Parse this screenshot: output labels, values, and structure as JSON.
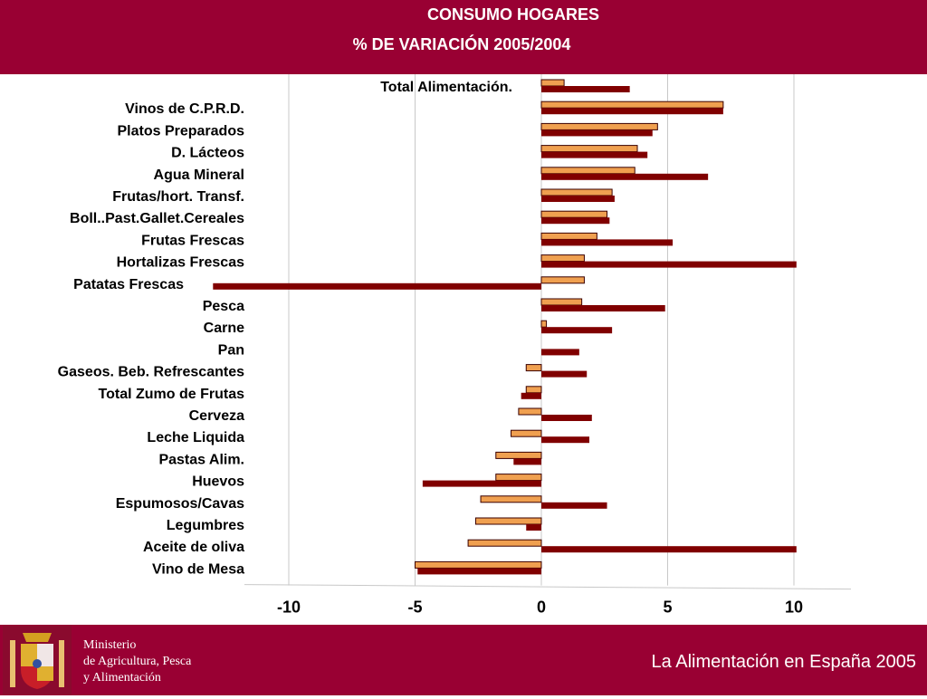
{
  "header": {
    "title": "CONSUMO HOGARES",
    "subtitle": "% DE VARIACIÓN  2005/2004"
  },
  "footer": {
    "ministry_line1": "Ministerio",
    "ministry_line2": "de Agricultura, Pesca",
    "ministry_line3": "y Alimentación",
    "tagline": "La Alimentación en España 2005",
    "emblem_icon": "spanish-coat-of-arms-icon"
  },
  "colors": {
    "brand": "#990033",
    "series_a": "#f0a050",
    "series_b": "#800000"
  },
  "chart_data": {
    "type": "bar",
    "orientation": "horizontal",
    "xlim": [
      -12,
      12
    ],
    "x_ticks": [
      "-10",
      "-5",
      "0",
      "5",
      "10"
    ],
    "grid": true,
    "legend": "none",
    "categories": [
      "Total Alimentación.",
      "Vinos de C.P.R.D.",
      "Platos Preparados",
      "D. Lácteos",
      "Agua Mineral",
      "Frutas/hort. Transf.",
      "Boll..Past.Gallet.Cereales",
      "Frutas Frescas",
      "Hortalizas Frescas",
      "Patatas Frescas",
      "Pesca",
      "Carne",
      "Pan",
      "Gaseos. Beb. Refrescantes",
      "Total Zumo de Frutas",
      "Cerveza",
      "Leche Liquida",
      "Pastas Alim.",
      "Huevos",
      "Espumosos/Cavas",
      "Legumbres",
      "Aceite de oliva",
      "Vino de Mesa"
    ],
    "series": [
      {
        "values": [
          0.9,
          7.2,
          4.6,
          3.8,
          3.7,
          2.8,
          2.6,
          2.2,
          1.7,
          1.7,
          1.6,
          0.2,
          0.0,
          -0.6,
          -0.6,
          -0.9,
          -1.2,
          -1.8,
          -1.8,
          -2.4,
          -2.6,
          -2.9,
          -5.0
        ]
      },
      {
        "values": [
          3.5,
          7.2,
          4.4,
          4.2,
          6.6,
          2.9,
          2.7,
          5.2,
          10.1,
          -13.0,
          4.9,
          2.8,
          1.5,
          1.8,
          -0.8,
          2.0,
          1.9,
          -1.1,
          -4.7,
          2.6,
          -0.6,
          10.1,
          -4.9
        ]
      }
    ]
  }
}
